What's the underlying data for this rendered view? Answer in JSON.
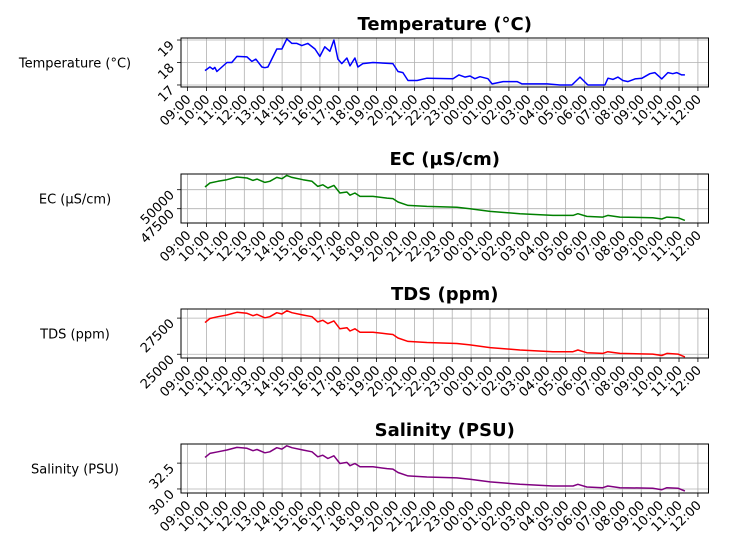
{
  "chart_data": [
    {
      "type": "line",
      "title": "Temperature (°C)",
      "ylabel": "Temperature (°C)",
      "xlabel": "",
      "color": "#0000ff",
      "x_unit": "hours since 09:00 (first day)",
      "xlim": [
        -0.35,
        27.56
      ],
      "ylim": [
        16.91,
        19.09
      ],
      "yticks": [
        17,
        18,
        19
      ],
      "ytick_labels": [
        "17",
        "18",
        "19"
      ],
      "grid": true,
      "x": [
        0.92,
        1.18,
        1.34,
        1.44,
        1.55,
        2.08,
        2.34,
        2.61,
        3.14,
        3.4,
        3.61,
        3.93,
        4.09,
        4.25,
        4.72,
        4.99,
        5.25,
        5.52,
        5.78,
        6.04,
        6.36,
        6.74,
        7.0,
        7.26,
        7.53,
        7.74,
        7.95,
        8.16,
        8.43,
        8.59,
        8.85,
        9.01,
        9.27,
        9.81,
        10.86,
        11.13,
        11.39,
        11.66,
        12.14,
        12.66,
        14.04,
        14.36,
        14.67,
        14.94,
        15.2,
        15.47,
        15.89,
        16.11,
        16.69,
        17.43,
        17.7,
        19.02,
        19.7,
        20.33,
        20.76,
        21.18,
        22.08,
        22.24,
        22.5,
        22.77,
        23.03,
        23.3,
        23.67,
        24.04,
        24.46,
        24.72,
        25.09,
        25.41,
        25.67,
        25.88,
        26.14,
        26.31
      ],
      "y": [
        17.64,
        17.8,
        17.7,
        17.78,
        17.6,
        18.0,
        18.0,
        18.27,
        18.25,
        18.05,
        18.15,
        17.8,
        17.77,
        17.8,
        18.6,
        18.6,
        19.05,
        18.85,
        18.85,
        18.75,
        18.85,
        18.6,
        18.27,
        18.7,
        18.5,
        19.0,
        18.15,
        17.95,
        18.2,
        17.85,
        18.2,
        17.8,
        17.95,
        18.0,
        17.95,
        17.6,
        17.55,
        17.2,
        17.2,
        17.3,
        17.28,
        17.45,
        17.35,
        17.4,
        17.28,
        17.37,
        17.28,
        17.05,
        17.15,
        17.15,
        17.05,
        17.05,
        17.0,
        17.0,
        17.35,
        17.0,
        17.0,
        17.3,
        17.25,
        17.35,
        17.2,
        17.15,
        17.27,
        17.3,
        17.5,
        17.55,
        17.27,
        17.55,
        17.5,
        17.55,
        17.45,
        17.45
      ]
    },
    {
      "type": "line",
      "title": "EC (µS/cm)",
      "ylabel": "EC (µS/cm)",
      "xlabel": "",
      "color": "#008000",
      "x_unit": "hours since 09:00 (first day)",
      "xlim": [
        -0.35,
        27.56
      ],
      "ylim": [
        45618,
        52066
      ],
      "yticks": [
        47500,
        50000
      ],
      "ytick_labels": [
        "47500",
        "50000"
      ],
      "grid": true,
      "x": [
        0.92,
        1.18,
        1.6,
        2.08,
        2.61,
        3.14,
        3.46,
        3.67,
        4.09,
        4.35,
        4.72,
        4.99,
        5.25,
        5.52,
        6.1,
        6.58,
        6.89,
        7.15,
        7.42,
        7.74,
        8.06,
        8.43,
        8.59,
        8.85,
        9.12,
        9.81,
        10.55,
        10.86,
        11.13,
        11.66,
        12.66,
        14.25,
        14.94,
        16.0,
        17.58,
        19.33,
        20.39,
        20.65,
        21.12,
        21.97,
        22.23,
        22.87,
        24.61,
        25.09,
        25.36,
        25.94,
        26.31
      ],
      "y": [
        50350,
        50880,
        51100,
        51320,
        51670,
        51540,
        51230,
        51400,
        50960,
        51100,
        51620,
        51450,
        51880,
        51620,
        51320,
        51100,
        50440,
        50650,
        50220,
        50570,
        49560,
        49700,
        49270,
        49560,
        49120,
        49120,
        48900,
        48830,
        48380,
        47940,
        47800,
        47680,
        47500,
        47150,
        46840,
        46620,
        46620,
        46840,
        46490,
        46400,
        46620,
        46400,
        46320,
        46140,
        46400,
        46320,
        45960
      ]
    },
    {
      "type": "line",
      "title": "TDS (ppm)",
      "ylabel": "TDS (ppm)",
      "xlabel": "",
      "color": "#ff0000",
      "x_unit": "hours since 09:00 (first day)",
      "xlim": [
        -0.35,
        27.56
      ],
      "ylim": [
        24741,
        28130
      ],
      "yticks": [
        25000,
        27500
      ],
      "ytick_labels": [
        "25000",
        "27500"
      ],
      "grid": true,
      "x": [
        0.92,
        1.18,
        1.6,
        2.08,
        2.61,
        3.14,
        3.46,
        3.67,
        4.09,
        4.35,
        4.72,
        4.99,
        5.25,
        5.52,
        6.1,
        6.58,
        6.89,
        7.15,
        7.42,
        7.74,
        8.06,
        8.43,
        8.59,
        8.85,
        9.12,
        9.81,
        10.55,
        10.86,
        11.13,
        11.66,
        12.66,
        14.25,
        14.94,
        16.0,
        17.58,
        19.33,
        20.39,
        20.65,
        21.12,
        21.97,
        22.23,
        22.87,
        24.61,
        25.09,
        25.36,
        25.94,
        26.31
      ],
      "y": [
        27189,
        27475,
        27594,
        27713,
        27902,
        27832,
        27664,
        27756,
        27518,
        27594,
        27875,
        27783,
        28015,
        27875,
        27713,
        27594,
        27238,
        27351,
        27119,
        27308,
        26762,
        26838,
        26606,
        26762,
        26525,
        26525,
        26406,
        26368,
        26125,
        25888,
        25812,
        25747,
        25650,
        25461,
        25294,
        25175,
        25175,
        25294,
        25105,
        25056,
        25175,
        25056,
        25013,
        24916,
        25056,
        25013,
        24818
      ]
    },
    {
      "type": "line",
      "title": "Salinity (PSU)",
      "ylabel": "Salinity (PSU)",
      "xlabel": "",
      "color": "#800080",
      "x_unit": "hours since 09:00 (first day)",
      "xlim": [
        -0.35,
        27.56
      ],
      "ylim": [
        29.61,
        34.35
      ],
      "yticks": [
        30.0,
        32.5
      ],
      "ytick_labels": [
        "30.0",
        "32.5"
      ],
      "grid": true,
      "x": [
        0.92,
        1.18,
        1.6,
        2.08,
        2.61,
        3.14,
        3.46,
        3.67,
        4.09,
        4.35,
        4.72,
        4.99,
        5.25,
        5.52,
        6.1,
        6.58,
        6.89,
        7.15,
        7.42,
        7.74,
        8.06,
        8.43,
        8.59,
        8.85,
        9.12,
        9.81,
        10.55,
        10.86,
        11.13,
        11.66,
        12.66,
        14.25,
        14.94,
        16.0,
        17.58,
        19.33,
        20.39,
        20.65,
        21.12,
        21.97,
        22.23,
        22.87,
        24.61,
        25.09,
        25.36,
        25.94,
        26.31
      ],
      "y": [
        33.05,
        33.44,
        33.6,
        33.77,
        34.02,
        33.93,
        33.7,
        33.82,
        33.5,
        33.6,
        33.99,
        33.86,
        34.18,
        33.99,
        33.77,
        33.6,
        33.11,
        33.27,
        32.95,
        33.21,
        32.46,
        32.57,
        32.25,
        32.46,
        32.14,
        32.14,
        31.97,
        31.92,
        31.59,
        31.26,
        31.16,
        31.07,
        30.94,
        30.68,
        30.45,
        30.29,
        30.29,
        30.45,
        30.19,
        30.12,
        30.29,
        30.12,
        30.07,
        29.93,
        30.12,
        30.07,
        29.8
      ]
    }
  ],
  "xticks": {
    "values": [
      0,
      1,
      2,
      3,
      4,
      5,
      6,
      7,
      8,
      9,
      10,
      11,
      12,
      13,
      14,
      15,
      16,
      17,
      18,
      19,
      20,
      21,
      22,
      23,
      24,
      25,
      26,
      27
    ],
    "labels": [
      "09:00",
      "10:00",
      "11:00",
      "12:00",
      "13:00",
      "14:00",
      "15:00",
      "16:00",
      "17:00",
      "18:00",
      "19:00",
      "20:00",
      "21:00",
      "22:00",
      "23:00",
      "00:00",
      "01:00",
      "02:00",
      "03:00",
      "04:00",
      "05:00",
      "06:00",
      "07:00",
      "08:00",
      "09:00",
      "10:00",
      "11:00",
      "12:00"
    ]
  }
}
